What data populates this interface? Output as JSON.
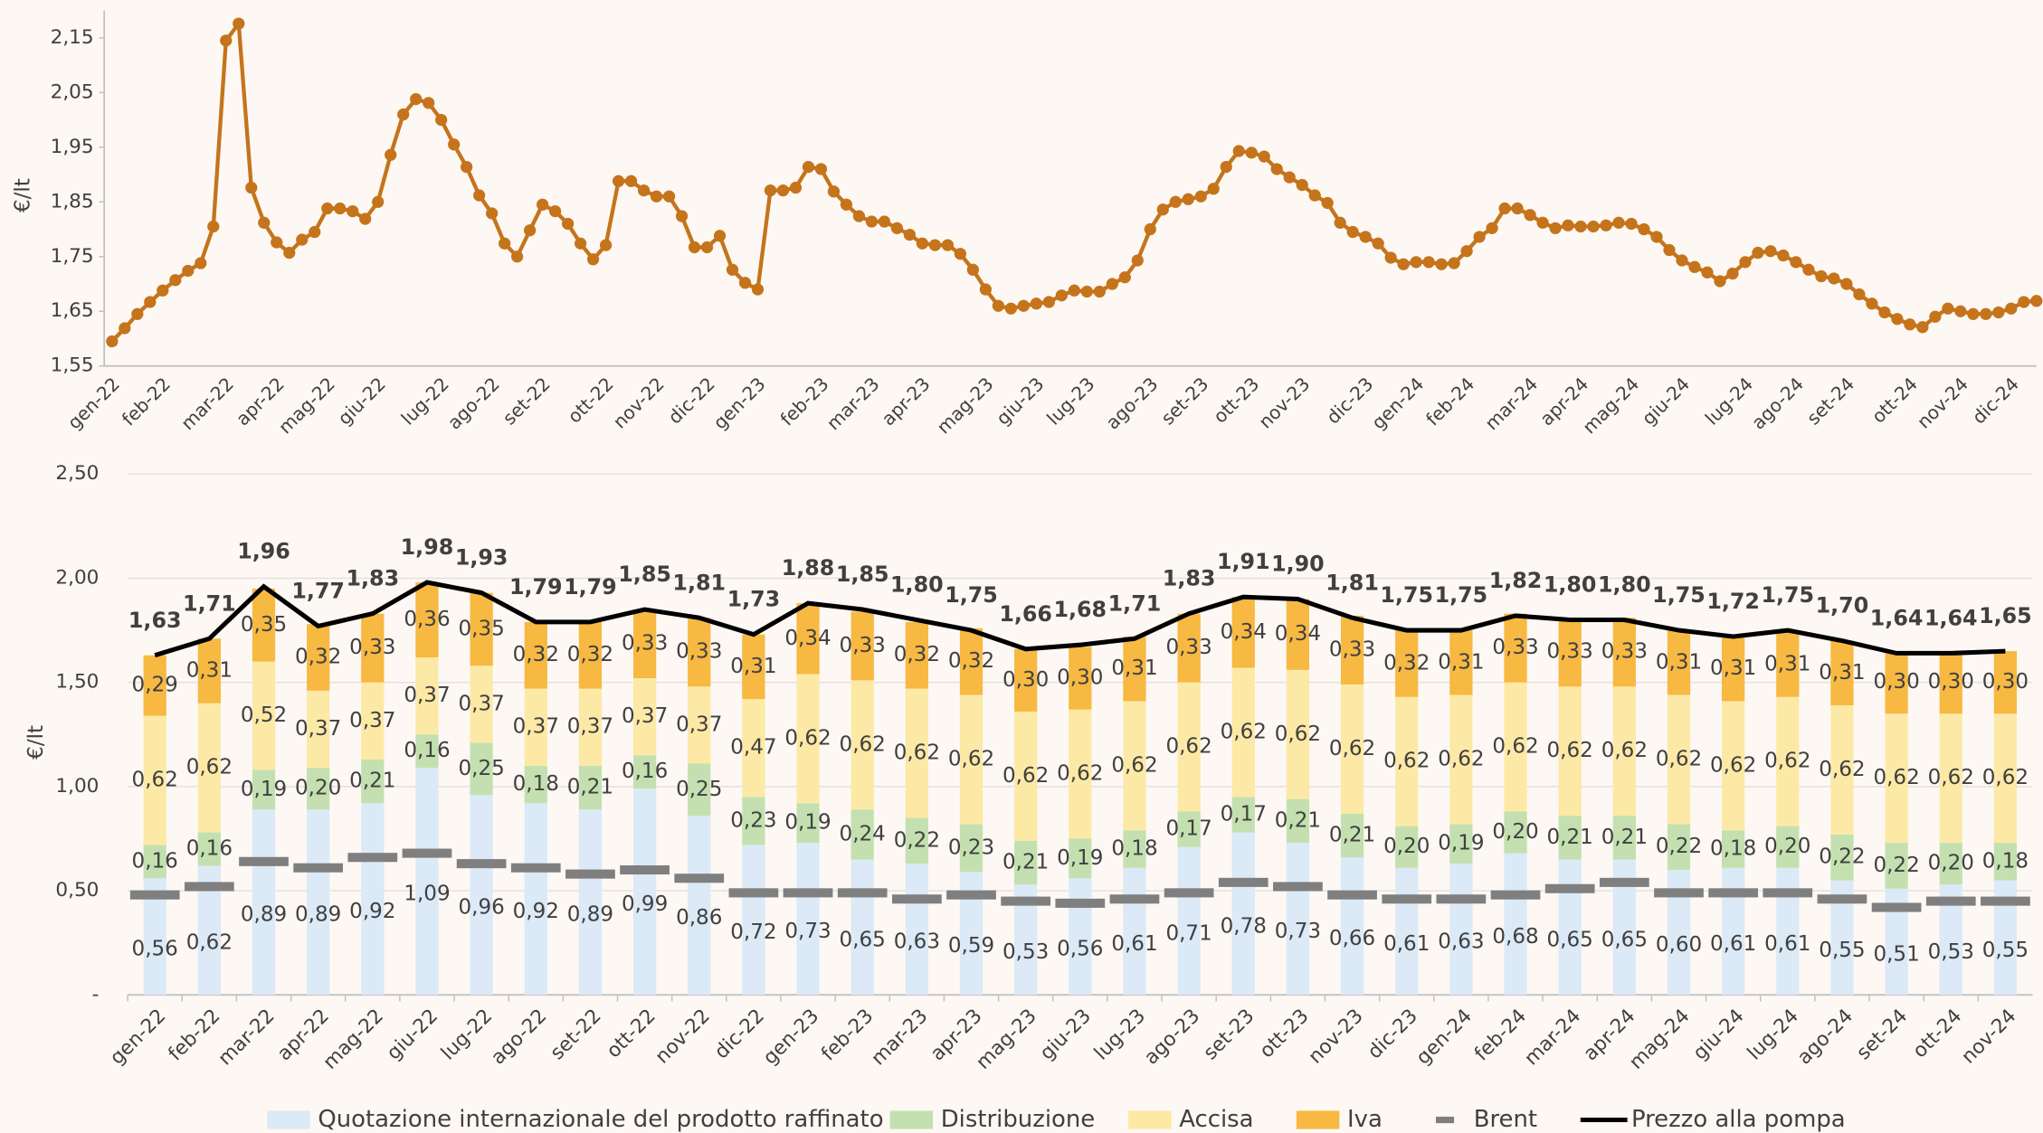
{
  "chart_data": [
    {
      "type": "line",
      "y_label": "€/lt",
      "grid": false,
      "markers": true,
      "ylim": [
        1.55,
        2.2
      ],
      "yticks": [
        {
          "value": 1.55,
          "label": "1,55"
        },
        {
          "value": 1.65,
          "label": "1,65"
        },
        {
          "value": 1.75,
          "label": "1,75"
        },
        {
          "value": 1.85,
          "label": "1,85"
        },
        {
          "value": 1.95,
          "label": "1,95"
        },
        {
          "value": 2.05,
          "label": "2,05"
        },
        {
          "value": 2.15,
          "label": "2,15"
        }
      ],
      "categories": [
        "gen-22",
        null,
        null,
        null,
        "feb-22",
        null,
        null,
        null,
        null,
        "mar-22",
        null,
        null,
        null,
        "apr-22",
        null,
        null,
        null,
        "mag-22",
        null,
        null,
        null,
        "giu-22",
        null,
        null,
        null,
        null,
        "lug-22",
        null,
        null,
        null,
        "ago-22",
        null,
        null,
        null,
        "set-22",
        null,
        null,
        null,
        null,
        "ott-22",
        null,
        null,
        null,
        "nov-22",
        null,
        null,
        null,
        "dic-22",
        null,
        null,
        null,
        "gen-23",
        null,
        null,
        null,
        null,
        "feb-23",
        null,
        null,
        null,
        "mar-23",
        null,
        null,
        null,
        "apr-23",
        null,
        null,
        null,
        null,
        "mag-23",
        null,
        null,
        null,
        "giu-23",
        null,
        null,
        null,
        "lug-23",
        null,
        null,
        null,
        null,
        "ago-23",
        null,
        null,
        null,
        "set-23",
        null,
        null,
        null,
        "ott-23",
        null,
        null,
        null,
        "nov-23",
        null,
        null,
        null,
        null,
        "dic-23",
        null,
        null,
        null,
        "gen-24",
        null,
        null,
        null,
        "feb-24",
        null,
        null,
        null,
        null,
        "mar-24",
        null,
        null,
        null,
        "apr-24",
        null,
        null,
        null,
        "mag-24",
        null,
        null,
        null,
        "giu-24",
        null,
        null,
        null,
        null,
        "lug-24",
        null,
        null,
        null,
        "ago-24",
        null,
        null,
        null,
        "set-24",
        null,
        null,
        null,
        null,
        "ott-24",
        null,
        null,
        null,
        "nov-24",
        null,
        null,
        null,
        "dic-24",
        null,
        null
      ],
      "series": [
        {
          "color": "#c5741c",
          "values": [
            1.595,
            1.619,
            1.645,
            1.667,
            1.688,
            1.707,
            1.724,
            1.738,
            1.805,
            2.145,
            2.176,
            1.876,
            1.812,
            1.776,
            1.757,
            1.781,
            1.795,
            1.838,
            1.838,
            1.833,
            1.819,
            1.85,
            1.936,
            2.01,
            2.038,
            2.031,
            2.0,
            1.955,
            1.914,
            1.862,
            1.829,
            1.774,
            1.75,
            1.798,
            1.845,
            1.833,
            1.81,
            1.774,
            1.745,
            1.771,
            1.888,
            1.888,
            1.871,
            1.86,
            1.86,
            1.824,
            1.767,
            1.767,
            1.788,
            1.726,
            1.702,
            1.69,
            1.871,
            1.871,
            1.876,
            1.914,
            1.91,
            1.869,
            1.845,
            1.824,
            1.814,
            1.814,
            1.802,
            1.79,
            1.774,
            1.771,
            1.771,
            1.755,
            1.726,
            1.69,
            1.66,
            1.655,
            1.66,
            1.664,
            1.667,
            1.679,
            1.688,
            1.686,
            1.686,
            1.7,
            1.712,
            1.743,
            1.8,
            1.836,
            1.85,
            1.855,
            1.86,
            1.874,
            1.914,
            1.943,
            1.94,
            1.933,
            1.91,
            1.895,
            1.881,
            1.862,
            1.848,
            1.812,
            1.795,
            1.786,
            1.774,
            1.748,
            1.736,
            1.74,
            1.74,
            1.736,
            1.738,
            1.76,
            1.786,
            1.802,
            1.838,
            1.838,
            1.826,
            1.812,
            1.802,
            1.807,
            1.805,
            1.805,
            1.807,
            1.812,
            1.81,
            1.8,
            1.786,
            1.762,
            1.743,
            1.731,
            1.721,
            1.705,
            1.719,
            1.74,
            1.757,
            1.76,
            1.752,
            1.74,
            1.726,
            1.714,
            1.71,
            1.7,
            1.681,
            1.664,
            1.648,
            1.636,
            1.626,
            1.621,
            1.64,
            1.655,
            1.65,
            1.645,
            1.645,
            1.648,
            1.655,
            1.667,
            1.669
          ]
        }
      ]
    },
    {
      "type": "bar",
      "stacked": true,
      "y_label": "€/lt",
      "grid": true,
      "legend": "bottom",
      "ylim": [
        0,
        2.5
      ],
      "yticks": [
        {
          "value": 0,
          "label": "-"
        },
        {
          "value": 0.5,
          "label": "0,50"
        },
        {
          "value": 1,
          "label": "1,00"
        },
        {
          "value": 1.5,
          "label": "1,50"
        },
        {
          "value": 2,
          "label": "2,00"
        },
        {
          "value": 2.5,
          "label": "2,50"
        }
      ],
      "categories": [
        "gen-22",
        "feb-22",
        "mar-22",
        "apr-22",
        "mag-22",
        "giu-22",
        "lug-22",
        "ago-22",
        "set-22",
        "ott-22",
        "nov-22",
        "dic-22",
        "gen-23",
        "feb-23",
        "mar-23",
        "apr-23",
        "mag-23",
        "giu-23",
        "lug-23",
        "ago-23",
        "set-23",
        "ott-23",
        "nov-23",
        "dic-23",
        "gen-24",
        "feb-24",
        "mar-24",
        "apr-24",
        "mag-24",
        "giu-24",
        "lug-24",
        "ago-24",
        "set-24",
        "ott-24",
        "nov-24"
      ],
      "series": [
        {
          "name": "Quotazione internazionale del prodotto raffinato",
          "type": "bar",
          "color": "#dce9f7",
          "values": [
            0.56,
            0.62,
            0.89,
            0.89,
            0.92,
            1.09,
            0.96,
            0.92,
            0.89,
            0.99,
            0.86,
            0.72,
            0.73,
            0.65,
            0.63,
            0.59,
            0.53,
            0.56,
            0.61,
            0.71,
            0.78,
            0.73,
            0.66,
            0.61,
            0.63,
            0.68,
            0.65,
            0.65,
            0.6,
            0.61,
            0.61,
            0.55,
            0.51,
            0.53,
            0.55
          ],
          "value_labels": [
            "0,56",
            "0,62",
            "0,89",
            "0,89",
            "0,92",
            "1,09",
            "0,96",
            "0,92",
            "0,89",
            "0,99",
            "0,86",
            "0,72",
            "0,73",
            "0,65",
            "0,63",
            "0,59",
            "0,53",
            "0,56",
            "0,61",
            "0,71",
            "0,78",
            "0,73",
            "0,66",
            "0,61",
            "0,63",
            "0,68",
            "0,65",
            "0,65",
            "0,60",
            "0,61",
            "0,61",
            "0,55",
            "0,51",
            "0,53",
            "0,55"
          ]
        },
        {
          "name": "Distribuzione",
          "type": "bar",
          "color": "#c4e0b0",
          "values": [
            0.16,
            0.16,
            0.19,
            0.2,
            0.21,
            0.16,
            0.25,
            0.18,
            0.21,
            0.16,
            0.25,
            0.23,
            0.19,
            0.24,
            0.22,
            0.23,
            0.21,
            0.19,
            0.18,
            0.17,
            0.17,
            0.21,
            0.21,
            0.2,
            0.19,
            0.2,
            0.21,
            0.21,
            0.22,
            0.18,
            0.2,
            0.22,
            0.22,
            0.2,
            0.18
          ],
          "value_labels": [
            "0,16",
            "0,16",
            "0,19",
            "0,20",
            "0,21",
            "0,16",
            "0,25",
            "0,18",
            "0,21",
            "0,16",
            "0,25",
            "0,23",
            "0,19",
            "0,24",
            "0,22",
            "0,23",
            "0,21",
            "0,19",
            "0,18",
            "0,17",
            "0,17",
            "0,21",
            "0,21",
            "0,20",
            "0,19",
            "0,20",
            "0,21",
            "0,21",
            "0,22",
            "0,18",
            "0,20",
            "0,22",
            "0,22",
            "0,20",
            "0,18"
          ]
        },
        {
          "name": "Accisa",
          "type": "bar",
          "color": "#fde9a6",
          "values": [
            0.62,
            0.62,
            0.52,
            0.37,
            0.37,
            0.37,
            0.37,
            0.37,
            0.37,
            0.37,
            0.37,
            0.47,
            0.62,
            0.62,
            0.62,
            0.62,
            0.62,
            0.62,
            0.62,
            0.62,
            0.62,
            0.62,
            0.62,
            0.62,
            0.62,
            0.62,
            0.62,
            0.62,
            0.62,
            0.62,
            0.62,
            0.62,
            0.62,
            0.62,
            0.62
          ],
          "value_labels": [
            "0,62",
            "0,62",
            "0,52",
            "0,37",
            "0,37",
            "0,37",
            "0,37",
            "0,37",
            "0,37",
            "0,37",
            "0,37",
            "0,47",
            "0,62",
            "0,62",
            "0,62",
            "0,62",
            "0,62",
            "0,62",
            "0,62",
            "0,62",
            "0,62",
            "0,62",
            "0,62",
            "0,62",
            "0,62",
            "0,62",
            "0,62",
            "0,62",
            "0,62",
            "0,62",
            "0,62",
            "0,62",
            "0,62",
            "0,62",
            "0,62"
          ]
        },
        {
          "name": "Iva",
          "type": "bar",
          "color": "#f7b942",
          "values": [
            0.29,
            0.31,
            0.35,
            0.32,
            0.33,
            0.36,
            0.35,
            0.32,
            0.32,
            0.33,
            0.33,
            0.31,
            0.34,
            0.33,
            0.32,
            0.32,
            0.3,
            0.3,
            0.31,
            0.33,
            0.34,
            0.34,
            0.33,
            0.32,
            0.31,
            0.33,
            0.33,
            0.33,
            0.31,
            0.31,
            0.31,
            0.31,
            0.3,
            0.3,
            0.3
          ],
          "value_labels": [
            "0,29",
            "0,31",
            "0,35",
            "0,32",
            "0,33",
            "0,36",
            "0,35",
            "0,32",
            "0,32",
            "0,33",
            "0,33",
            "0,31",
            "0,34",
            "0,33",
            "0,32",
            "0,32",
            "0,30",
            "0,30",
            "0,31",
            "0,33",
            "0,34",
            "0,34",
            "0,33",
            "0,32",
            "0,31",
            "0,33",
            "0,33",
            "0,33",
            "0,31",
            "0,31",
            "0,31",
            "0,31",
            "0,30",
            "0,30",
            "0,30"
          ]
        },
        {
          "name": "Brent",
          "type": "marker",
          "color": "#7f7f7f",
          "values": [
            0.48,
            0.52,
            0.64,
            0.61,
            0.66,
            0.68,
            0.63,
            0.61,
            0.58,
            0.6,
            0.56,
            0.49,
            0.49,
            0.49,
            0.46,
            0.48,
            0.45,
            0.44,
            0.46,
            0.49,
            0.54,
            0.52,
            0.48,
            0.46,
            0.46,
            0.48,
            0.51,
            0.54,
            0.49,
            0.49,
            0.49,
            0.46,
            0.42,
            0.45,
            0.45
          ]
        },
        {
          "name": "Prezzo alla pompa",
          "type": "line",
          "color": "#000000",
          "values": [
            1.63,
            1.71,
            1.96,
            1.77,
            1.83,
            1.98,
            1.93,
            1.79,
            1.79,
            1.85,
            1.81,
            1.73,
            1.88,
            1.85,
            1.8,
            1.75,
            1.66,
            1.68,
            1.71,
            1.83,
            1.91,
            1.9,
            1.81,
            1.75,
            1.75,
            1.82,
            1.8,
            1.8,
            1.75,
            1.72,
            1.75,
            1.7,
            1.64,
            1.64,
            1.65
          ],
          "value_labels": [
            "1,63",
            "1,71",
            "1,96",
            "1,77",
            "1,83",
            "1,98",
            "1,93",
            "1,79",
            "1,79",
            "1,85",
            "1,81",
            "1,73",
            "1,88",
            "1,85",
            "1,80",
            "1,75",
            "1,66",
            "1,68",
            "1,71",
            "1,83",
            "1,91",
            "1,90",
            "1,81",
            "1,75",
            "1,75",
            "1,82",
            "1,80",
            "1,80",
            "1,75",
            "1,72",
            "1,75",
            "1,70",
            "1,64",
            "1,64",
            "1,65"
          ]
        }
      ]
    }
  ]
}
